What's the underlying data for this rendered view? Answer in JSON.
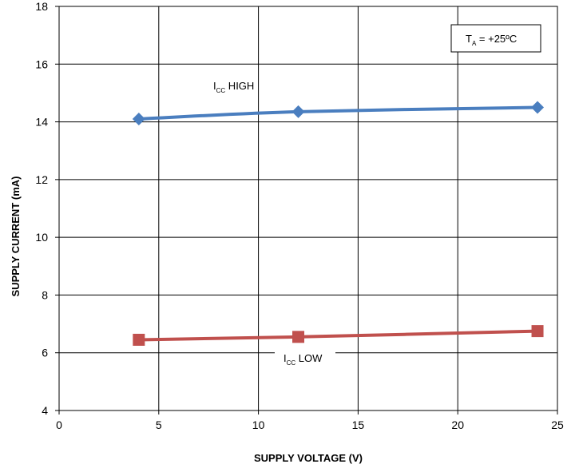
{
  "chart_data": {
    "type": "line",
    "xlabel": "SUPPLY VOLTAGE (V)",
    "ylabel": "SUPPLY CURRENT (mA)",
    "xlim": [
      0,
      25
    ],
    "ylim": [
      4,
      18
    ],
    "x_ticks": [
      "0",
      "5",
      "10",
      "15",
      "20",
      "25"
    ],
    "y_ticks": [
      "4",
      "6",
      "8",
      "10",
      "12",
      "14",
      "16",
      "18"
    ],
    "grid": true,
    "series": [
      {
        "label_main": "I",
        "label_sub": "CC",
        "label_rest": " HIGH",
        "color": "#4a7ebf",
        "marker": "diamond",
        "x": [
          4,
          12,
          24
        ],
        "y": [
          14.1,
          14.35,
          14.5
        ]
      },
      {
        "label_main": "I",
        "label_sub": "CC",
        "label_rest": " LOW",
        "color": "#c0504d",
        "marker": "square",
        "x": [
          4,
          12,
          24
        ],
        "y": [
          6.45,
          6.55,
          6.75
        ]
      }
    ],
    "condition": {
      "main": "T",
      "sub": "A",
      "rest": " = +25ºC"
    }
  }
}
